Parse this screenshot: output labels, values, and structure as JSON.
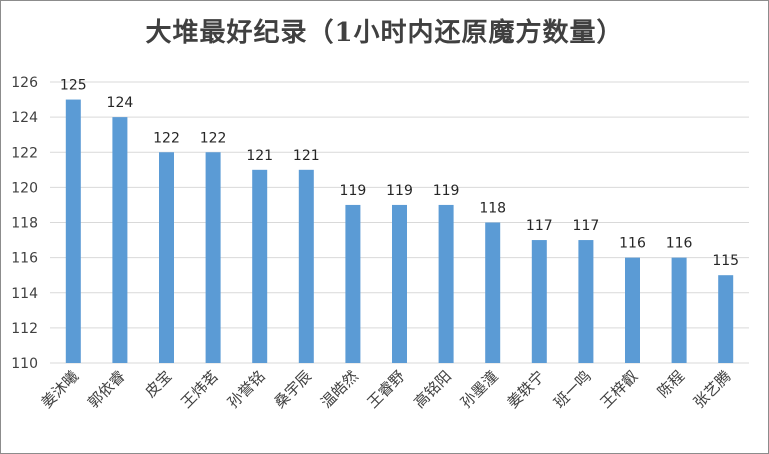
{
  "chart_data": {
    "type": "bar",
    "title": "大堆最好纪录（1小时内还原魔方数量）",
    "categories": [
      "姜沐曦",
      "郭依睿",
      "皮宝",
      "王炜茗",
      "孙誉铭",
      "桑宇辰",
      "温皓然",
      "王睿野",
      "高铭阳",
      "孙墨潼",
      "姜轶宁",
      "班一鸣",
      "王梓叡",
      "陈程",
      "张艺腾"
    ],
    "values": [
      125,
      124,
      122,
      122,
      121,
      121,
      119,
      119,
      119,
      118,
      117,
      117,
      116,
      116,
      115
    ],
    "ylim": [
      110,
      126
    ],
    "yticks": [
      110,
      112,
      114,
      116,
      118,
      120,
      122,
      124,
      126
    ],
    "grid": true,
    "legend": "none",
    "bar_color": "#5b9bd5",
    "grid_color": "#d9d9d9"
  }
}
